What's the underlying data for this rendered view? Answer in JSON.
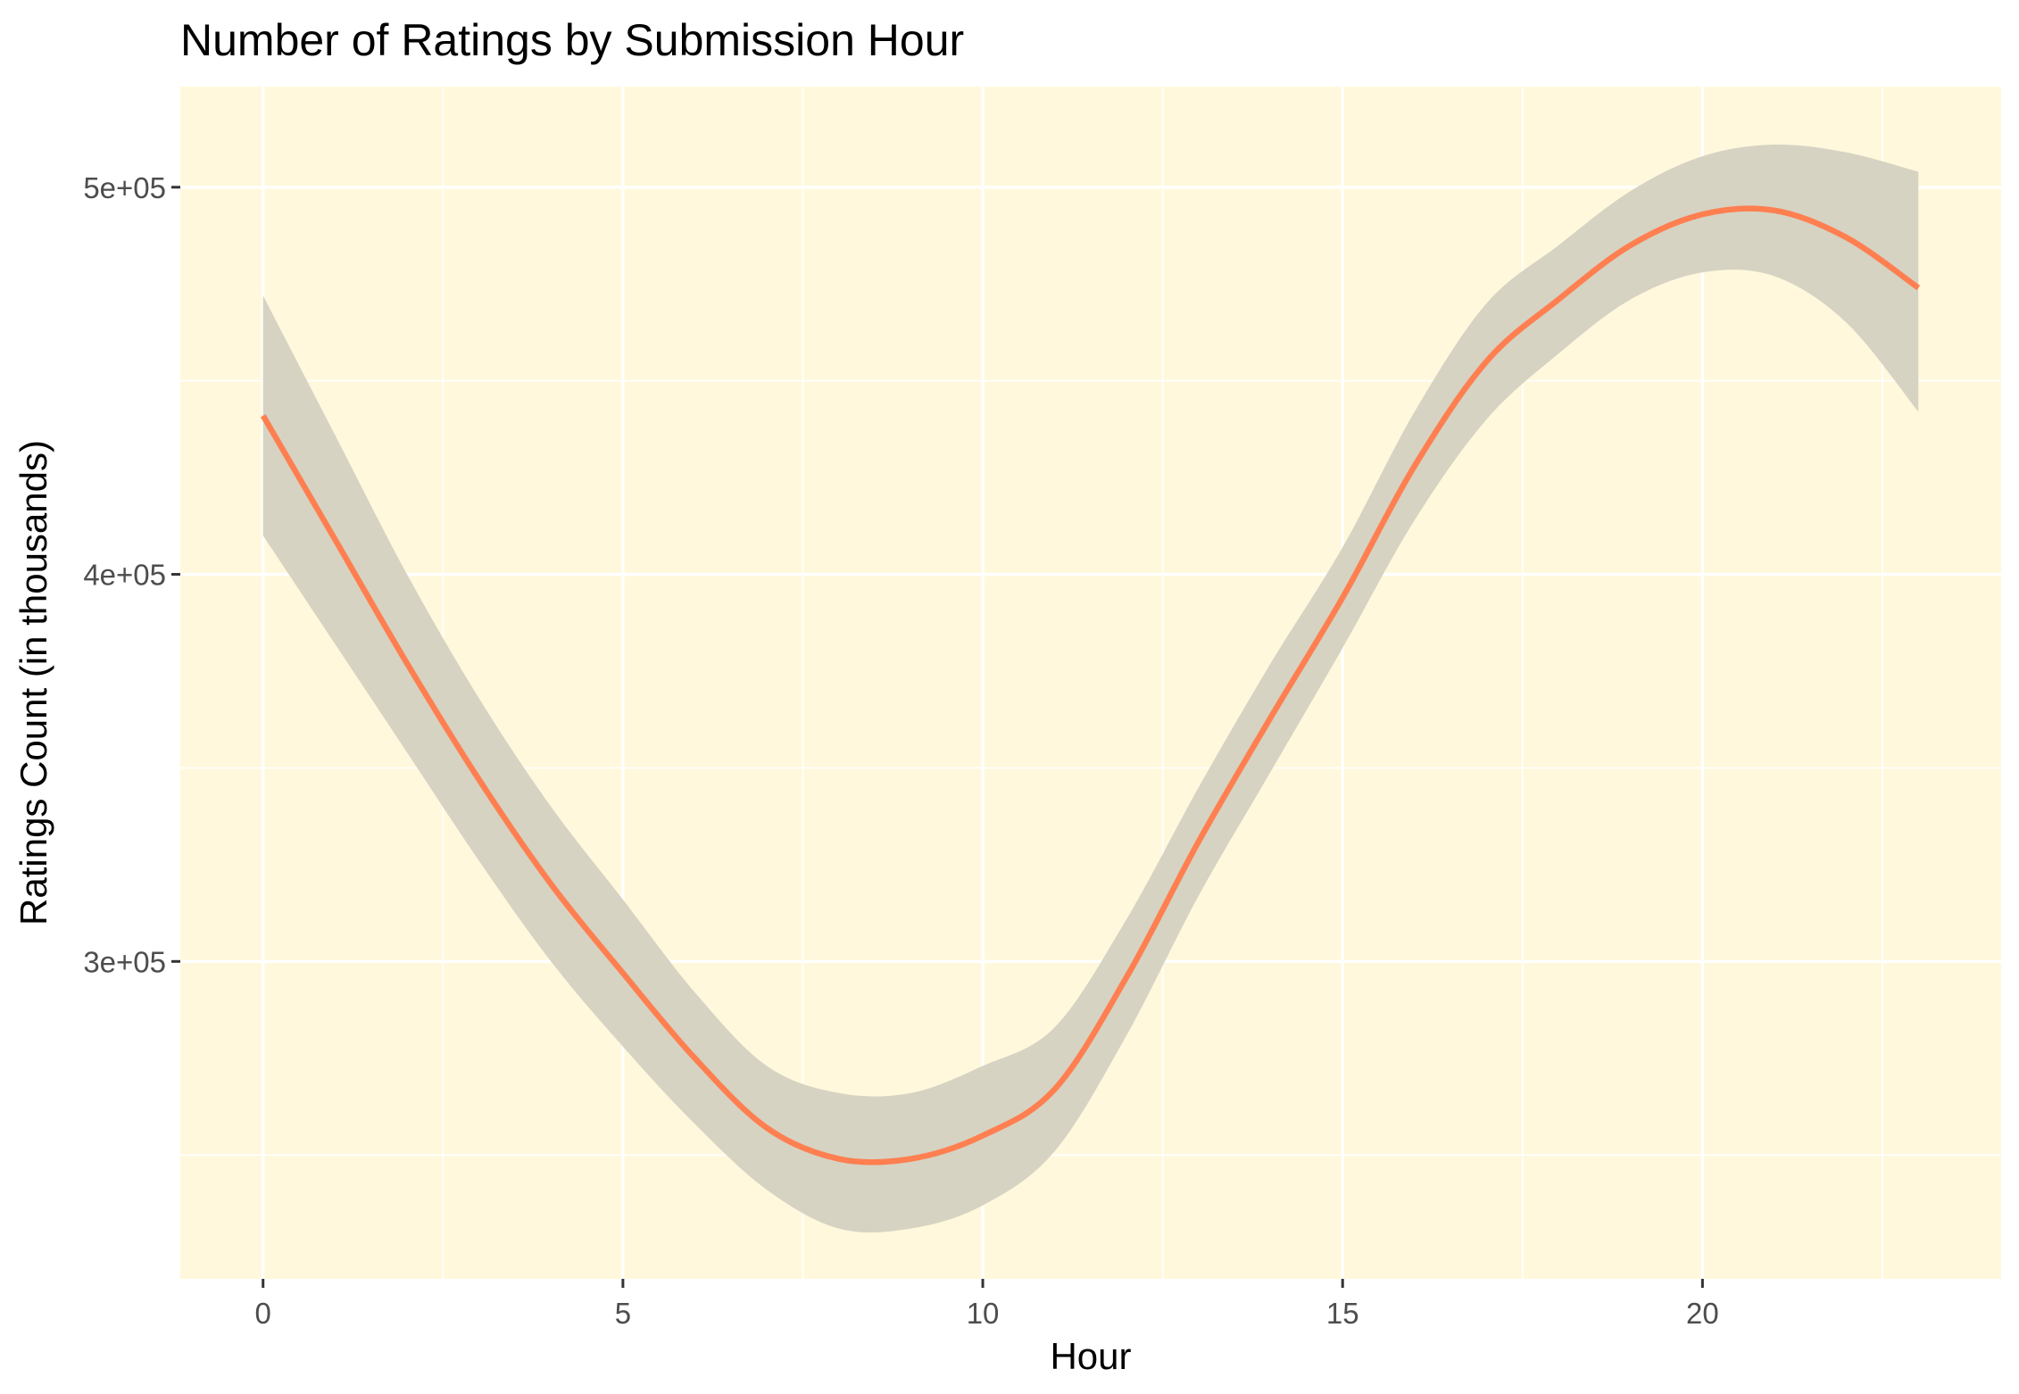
{
  "chart_data": {
    "type": "line",
    "title": "Number of Ratings by Submission Hour",
    "xlabel": "Hour",
    "ylabel": "Ratings Count (in thousands)",
    "xlim": [
      -1.15,
      24.15
    ],
    "ylim": [
      218000,
      526000
    ],
    "x_ticks": [
      0,
      5,
      10,
      15,
      20
    ],
    "x_tick_labels": [
      "0",
      "5",
      "10",
      "15",
      "20"
    ],
    "y_ticks": [
      300000,
      400000,
      500000
    ],
    "y_tick_labels": [
      "3e+05",
      "4e+05",
      "5e+05"
    ],
    "grid": true,
    "legend": "none",
    "colors": {
      "panel_background": "#fff8dc",
      "line": "#ff7f50",
      "confidence_band": "#d6d3c3"
    },
    "series": [
      {
        "type": "smooth",
        "x": [
          0,
          1,
          2,
          3,
          4,
          5,
          6,
          7,
          8,
          9,
          10,
          11,
          12,
          13,
          14,
          15,
          16,
          17,
          18,
          19,
          20,
          21,
          22,
          23
        ],
        "y": [
          441000,
          409000,
          377000,
          347000,
          320000,
          297000,
          275000,
          257000,
          249000,
          249000,
          255000,
          267000,
          296000,
          331000,
          363000,
          394000,
          428000,
          455000,
          471000,
          485000,
          493000,
          494000,
          487000,
          474000
        ],
        "y_lower": [
          410000,
          382000,
          354000,
          326000,
          300000,
          278000,
          258000,
          241000,
          231000,
          231000,
          237000,
          251000,
          281000,
          317000,
          349000,
          381000,
          414000,
          440000,
          457000,
          471000,
          478000,
          477000,
          465000,
          442000
        ],
        "y_upper": [
          472000,
          436000,
          400000,
          368000,
          340000,
          316000,
          292000,
          273000,
          266000,
          266000,
          273000,
          283000,
          311000,
          345000,
          377000,
          407000,
          442000,
          470000,
          485000,
          499000,
          508000,
          511000,
          509000,
          504000
        ]
      }
    ]
  }
}
